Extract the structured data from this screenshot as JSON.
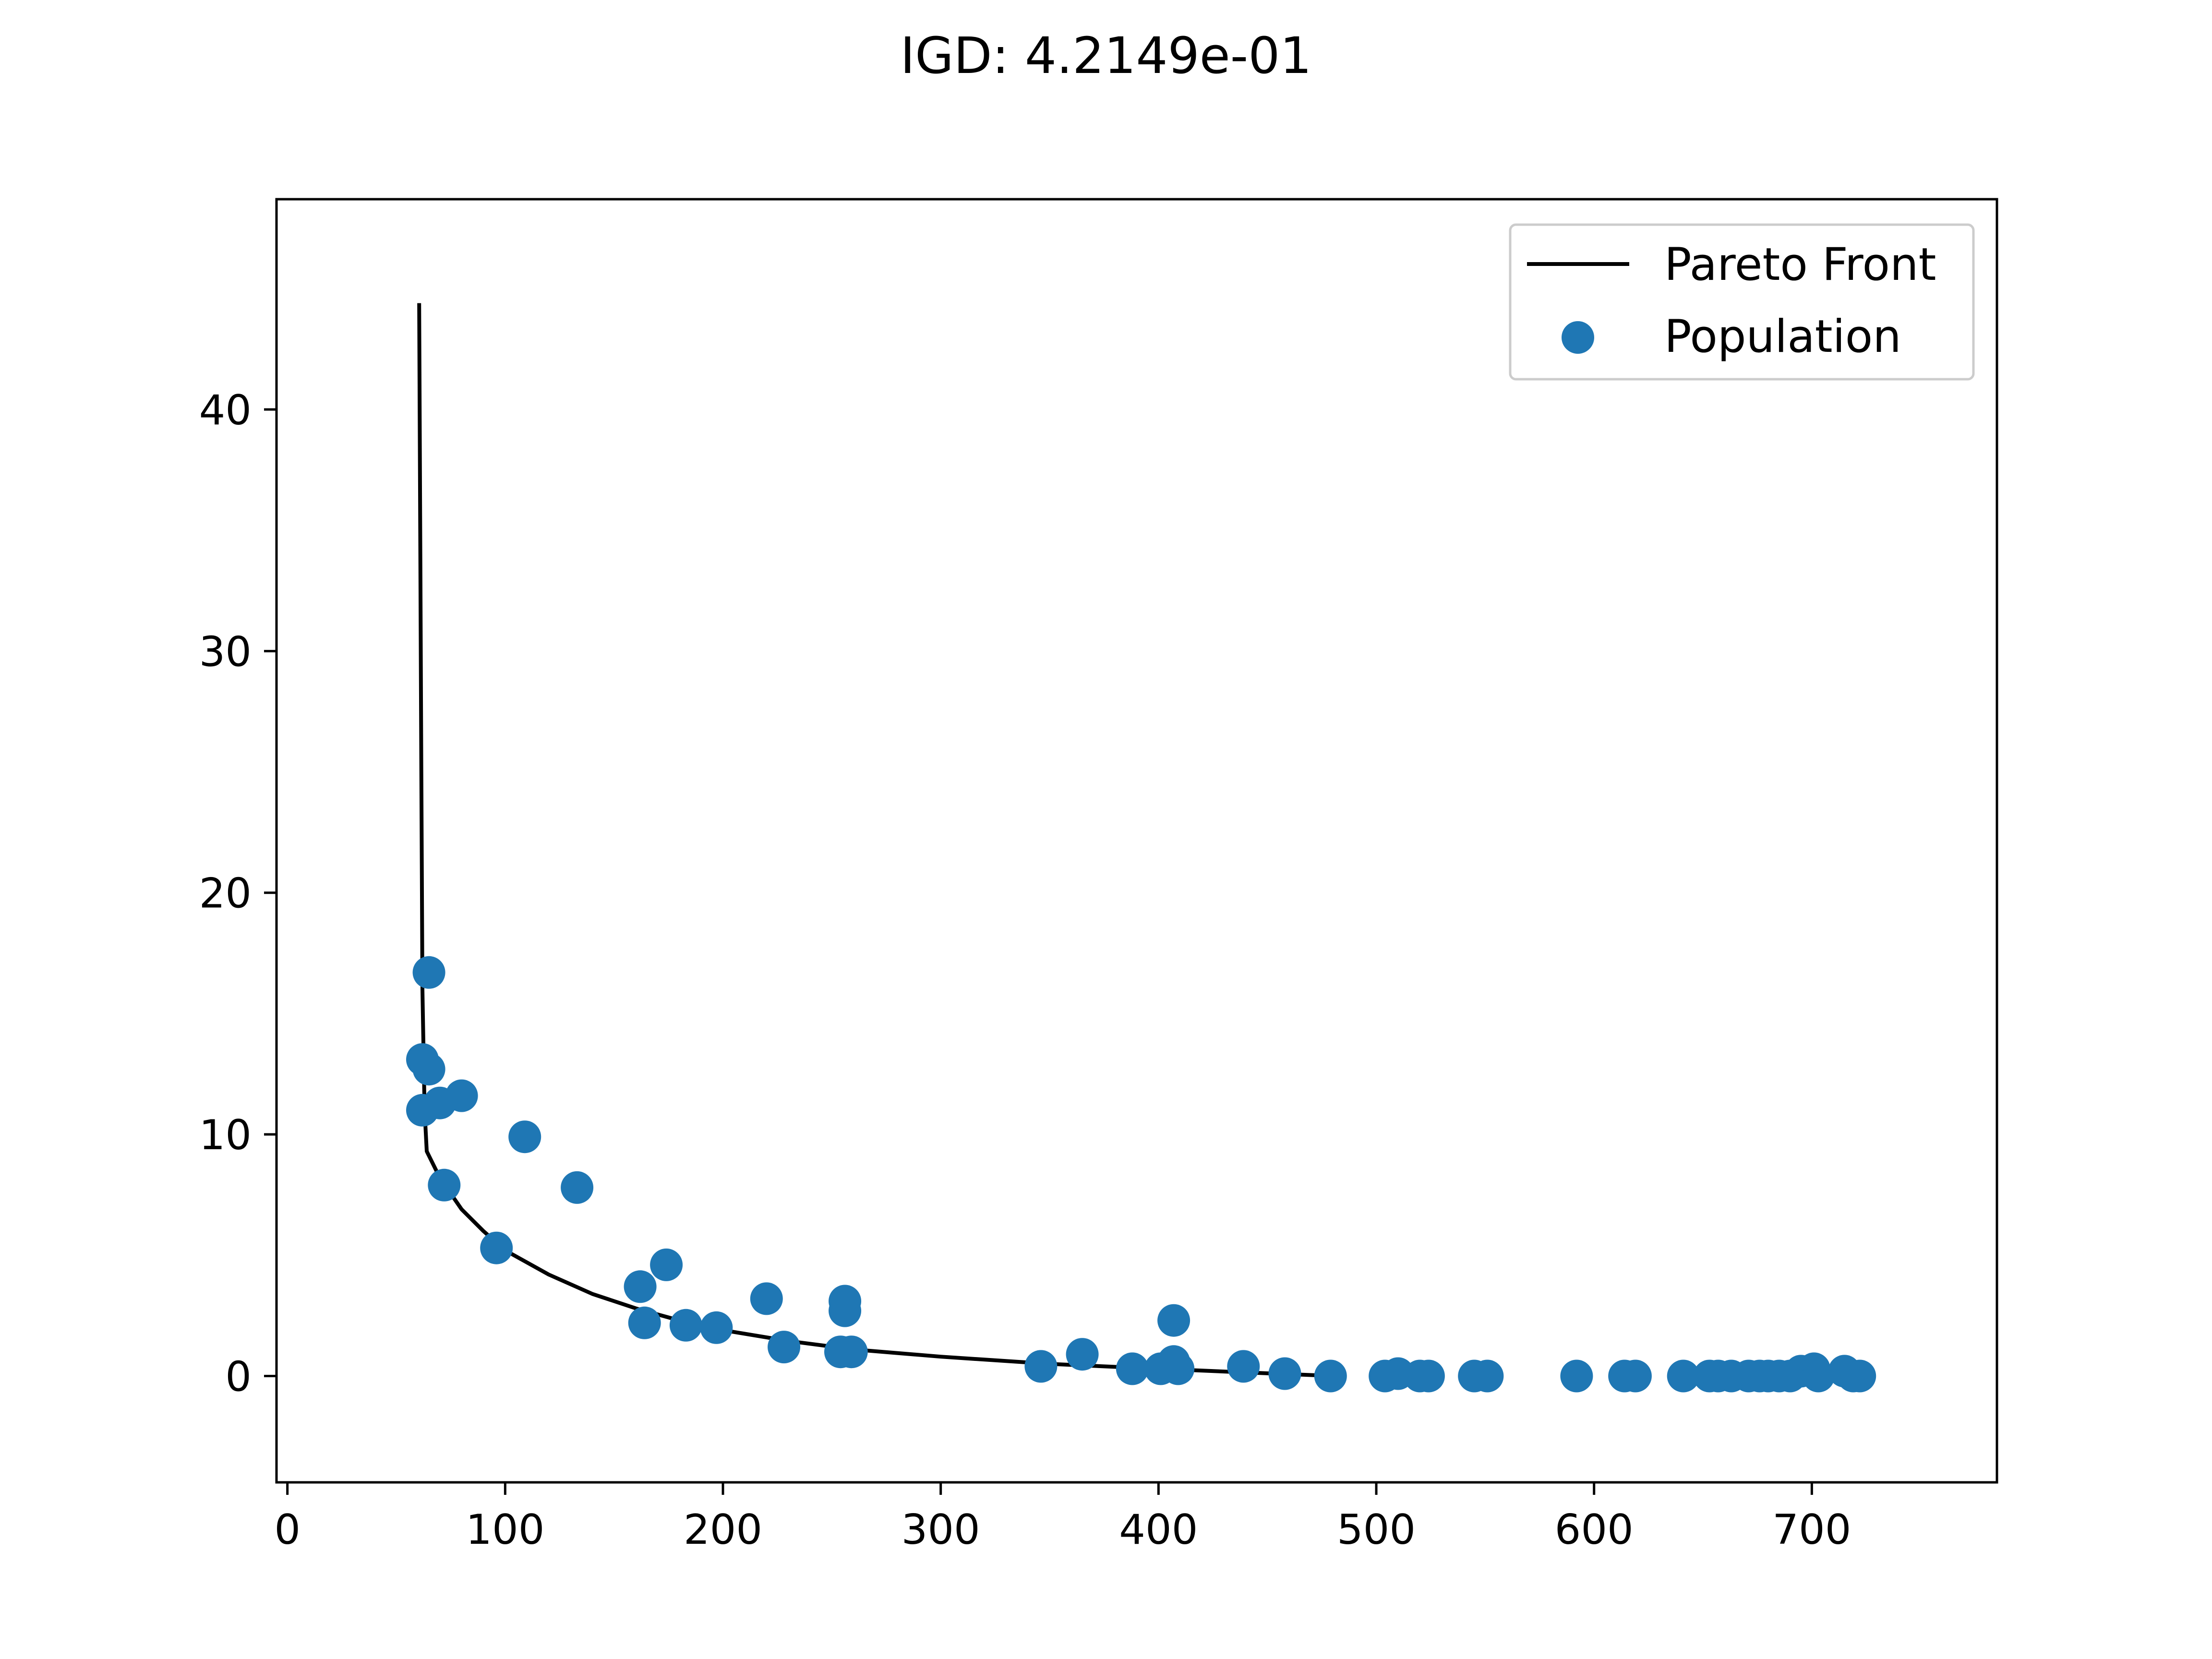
{
  "chart_data": {
    "type": "scatter",
    "title": "IGD: 4.2149e-01",
    "xlabel": "",
    "ylabel": "",
    "xlim": [
      -5,
      785
    ],
    "ylim": [
      -4.4,
      48.7
    ],
    "x_ticks": [
      0,
      100,
      200,
      300,
      400,
      500,
      600,
      700
    ],
    "y_ticks": [
      0,
      10,
      20,
      30,
      40
    ],
    "grid": false,
    "legend": {
      "position": "top-right",
      "entries": [
        "Pareto Front",
        "Population"
      ]
    },
    "colors": {
      "pareto_front": "#000000",
      "population": "#1f77b4"
    },
    "series": [
      {
        "name": "Pareto Front",
        "kind": "line",
        "points": [
          [
            60.5,
            44.4
          ],
          [
            61,
            35.0
          ],
          [
            61.5,
            25.0
          ],
          [
            62,
            16.0
          ],
          [
            63,
            11.0
          ],
          [
            64,
            9.3
          ],
          [
            70,
            8.2
          ],
          [
            80,
            6.9
          ],
          [
            90,
            6.0
          ],
          [
            100,
            5.2
          ],
          [
            120,
            4.2
          ],
          [
            140,
            3.4
          ],
          [
            160,
            2.8
          ],
          [
            180,
            2.3
          ],
          [
            200,
            1.9
          ],
          [
            230,
            1.45
          ],
          [
            260,
            1.1
          ],
          [
            300,
            0.8
          ],
          [
            350,
            0.5
          ],
          [
            400,
            0.3
          ],
          [
            440,
            0.15
          ],
          [
            481,
            0.0
          ]
        ]
      },
      {
        "name": "Population",
        "kind": "scatter",
        "points": [
          [
            65,
            16.7
          ],
          [
            62,
            13.1
          ],
          [
            65,
            12.7
          ],
          [
            62,
            11.0
          ],
          [
            70,
            11.3
          ],
          [
            80,
            11.6
          ],
          [
            109,
            9.9
          ],
          [
            72,
            7.9
          ],
          [
            133,
            7.8
          ],
          [
            96,
            5.3
          ],
          [
            174,
            4.6
          ],
          [
            162,
            3.7
          ],
          [
            164,
            2.2
          ],
          [
            183,
            2.1
          ],
          [
            197,
            2.0
          ],
          [
            220,
            3.2
          ],
          [
            228,
            1.2
          ],
          [
            256,
            3.1
          ],
          [
            256,
            2.7
          ],
          [
            254,
            1.0
          ],
          [
            259,
            1.0
          ],
          [
            346,
            0.4
          ],
          [
            365,
            0.9
          ],
          [
            388,
            0.3
          ],
          [
            407,
            2.3
          ],
          [
            401,
            0.3
          ],
          [
            407,
            0.6
          ],
          [
            409,
            0.3
          ],
          [
            439,
            0.4
          ],
          [
            458,
            0.1
          ],
          [
            479,
            0.0
          ],
          [
            504,
            0.0
          ],
          [
            510,
            0.1
          ],
          [
            520,
            0.0
          ],
          [
            524,
            0.0
          ],
          [
            545,
            0.0
          ],
          [
            551,
            0.0
          ],
          [
            592,
            0.0
          ],
          [
            614,
            0.0
          ],
          [
            619,
            0.0
          ],
          [
            641,
            0.0
          ],
          [
            653,
            0.0
          ],
          [
            657,
            0.0
          ],
          [
            663,
            0.0
          ],
          [
            671,
            0.0
          ],
          [
            676,
            0.0
          ],
          [
            680,
            0.0
          ],
          [
            685,
            0.0
          ],
          [
            690,
            0.0
          ],
          [
            695,
            0.2
          ],
          [
            701,
            0.3
          ],
          [
            703,
            0.0
          ],
          [
            715,
            0.2
          ],
          [
            719,
            0.0
          ],
          [
            722,
            0.0
          ]
        ]
      }
    ]
  }
}
